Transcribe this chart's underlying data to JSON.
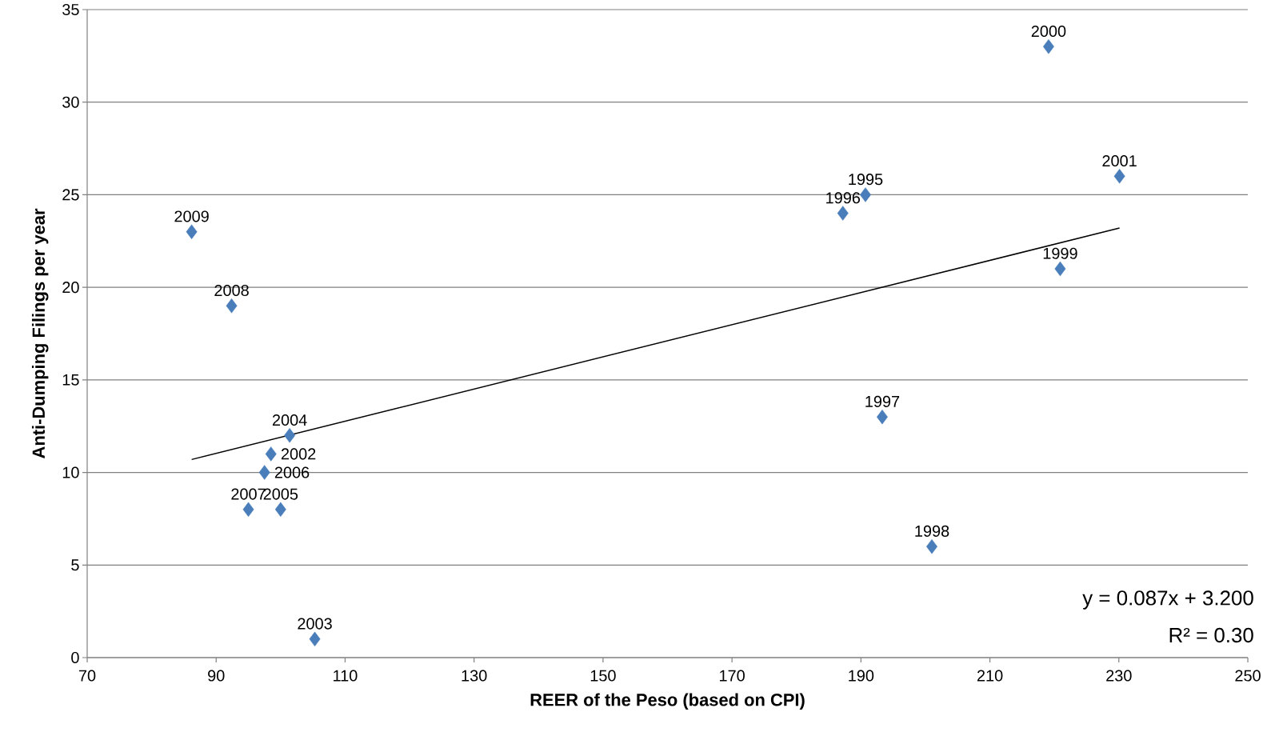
{
  "chart_data": {
    "type": "scatter",
    "xlabel": "REER of the Peso (based on CPI)",
    "ylabel": "Anti-Dumping Filings per year",
    "xlim": [
      70,
      250
    ],
    "xticks": [
      70,
      90,
      110,
      130,
      150,
      170,
      190,
      210,
      230,
      250
    ],
    "ylim": [
      0,
      35
    ],
    "yticks": [
      0,
      5,
      10,
      15,
      20,
      25,
      30,
      35
    ],
    "grid": "y",
    "marker": "diamond",
    "series": [
      {
        "color": "#4a7ebb",
        "x": [
          190.7,
          187.2,
          193.3,
          201,
          220.9,
          219.1,
          230.1,
          98.5,
          105.3,
          101.4,
          100,
          97.5,
          95,
          92.4,
          86.2
        ],
        "values": [
          25,
          24,
          13,
          6,
          21,
          33,
          26,
          11,
          1,
          12,
          8,
          10,
          8,
          19,
          23
        ]
      },
      {
        "type": "line",
        "color": "#000000",
        "marker": "none",
        "x": [
          86.2,
          230.1
        ],
        "values": [
          10.7,
          23.2
        ]
      }
    ],
    "annotations": [
      {
        "text": "1995",
        "x": 190.7,
        "y": 25
      },
      {
        "text": "1996",
        "x": 187.2,
        "y": 24
      },
      {
        "text": "1997",
        "x": 193.3,
        "y": 13
      },
      {
        "text": "1998",
        "x": 201,
        "y": 6
      },
      {
        "text": "1999",
        "x": 220.9,
        "y": 21
      },
      {
        "text": "2000",
        "x": 219.1,
        "y": 33
      },
      {
        "text": "2001",
        "x": 230.1,
        "y": 26
      },
      {
        "text": "2002",
        "x": 98.5,
        "y": 11
      },
      {
        "text": "2003",
        "x": 105.3,
        "y": 1
      },
      {
        "text": "2004",
        "x": 101.4,
        "y": 12
      },
      {
        "text": "2005",
        "x": 100,
        "y": 8
      },
      {
        "text": "2006",
        "x": 97.5,
        "y": 10
      },
      {
        "text": "2007",
        "x": 95,
        "y": 8
      },
      {
        "text": "2008",
        "x": 92.4,
        "y": 19
      },
      {
        "text": "2009",
        "x": 86.2,
        "y": 23
      },
      "y = 0.087x + 3.200",
      "R² = 0.30"
    ]
  }
}
